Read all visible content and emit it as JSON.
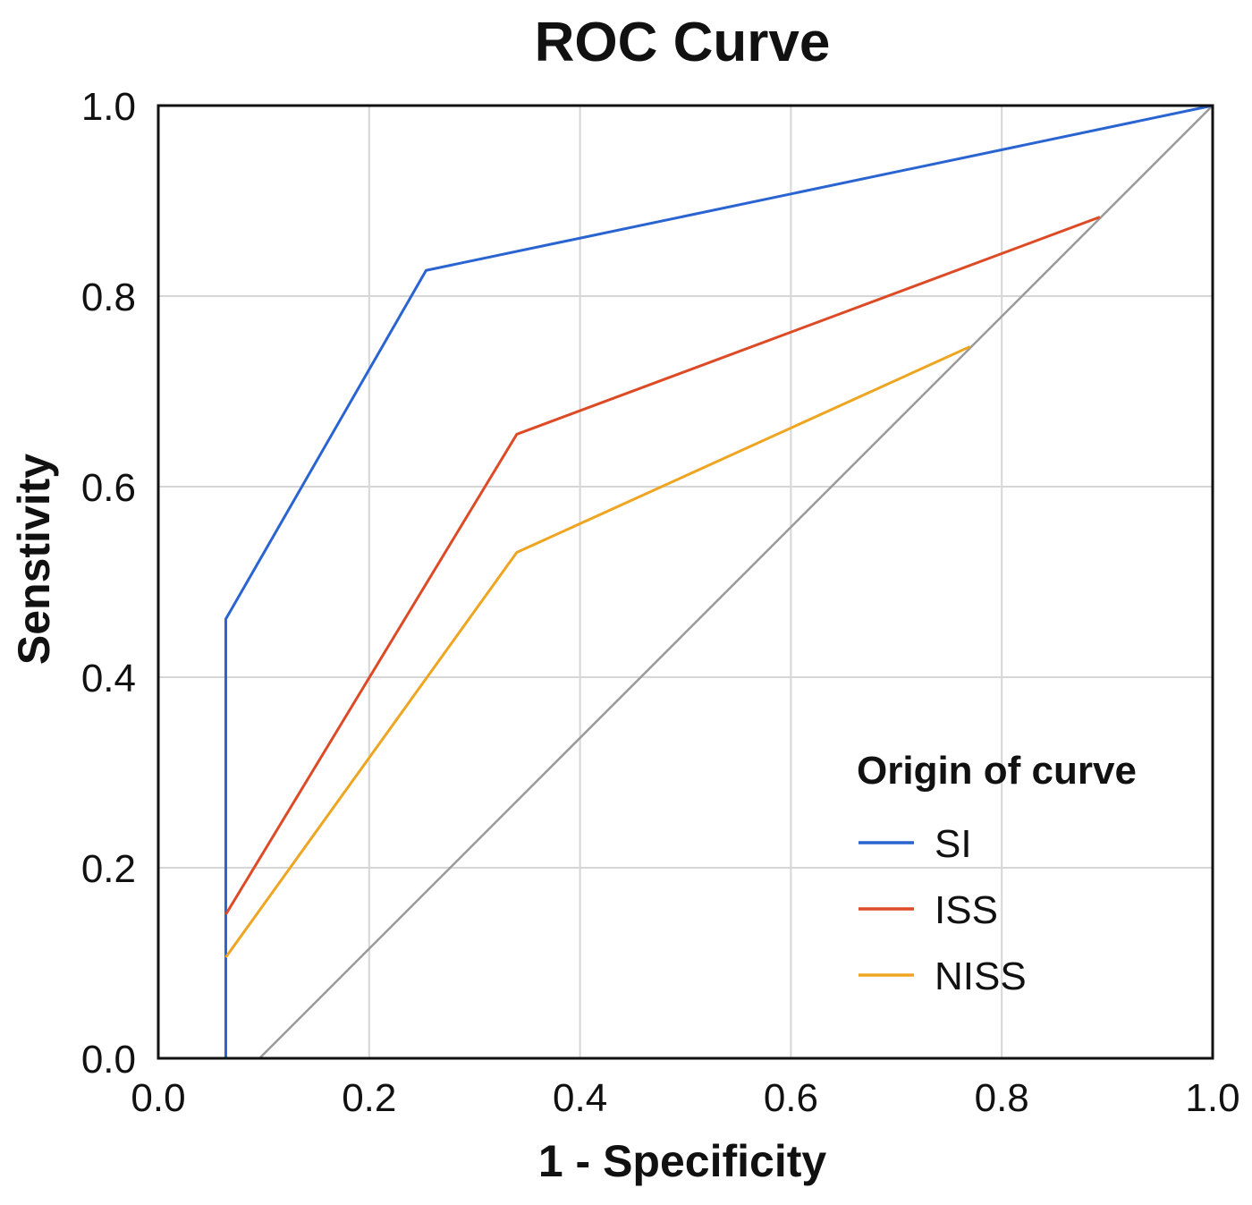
{
  "chart_data": {
    "type": "line",
    "title": "ROC Curve",
    "xlabel": "1 - Specificity",
    "ylabel": "Senstivity",
    "xlim": [
      0,
      1
    ],
    "ylim": [
      0,
      1
    ],
    "xticks": [
      "0.0",
      "0.2",
      "0.4",
      "0.6",
      "0.8",
      "1.0"
    ],
    "yticks": [
      "0.0",
      "0.2",
      "0.4",
      "0.6",
      "0.8",
      "1.0"
    ],
    "grid": true,
    "legend": {
      "title": "Origin of curve",
      "position": "bottom-right"
    },
    "series": [
      {
        "name": "SI",
        "color": "#2a64d0",
        "points": [
          [
            0.064,
            0
          ],
          [
            0.064,
            0.461
          ],
          [
            0.254,
            0.827
          ],
          [
            1,
            1
          ]
        ]
      },
      {
        "name": "ISS",
        "color": "#dc4a26",
        "points": [
          [
            0.064,
            0.151
          ],
          [
            0.34,
            0.655
          ],
          [
            0.893,
            0.883
          ]
        ]
      },
      {
        "name": "NISS",
        "color": "#eea521",
        "points": [
          [
            0.064,
            0.106
          ],
          [
            0.34,
            0.531
          ],
          [
            0.77,
            0.747
          ]
        ]
      }
    ],
    "reference_line": {
      "color": "#9a9a9a",
      "points": [
        [
          0.096,
          0
        ],
        [
          1,
          1
        ]
      ]
    }
  }
}
